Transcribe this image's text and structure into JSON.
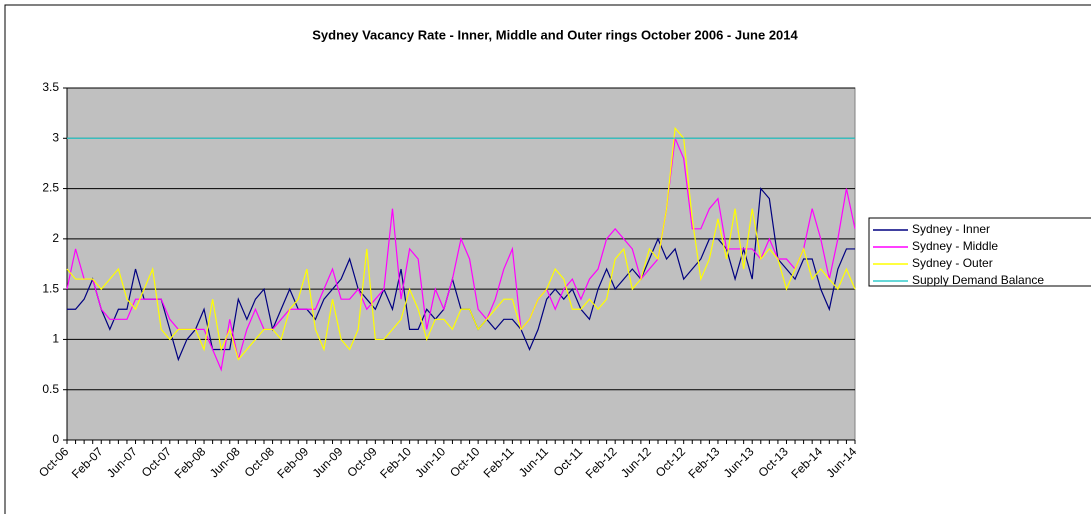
{
  "chart_data": {
    "type": "line",
    "title": "Sydney Vacancy Rate - Inner, Middle and Outer rings October 2006 - June 2014",
    "categories": [
      "Oct-06",
      null,
      null,
      null,
      "Feb-07",
      null,
      null,
      null,
      "Jun-07",
      null,
      null,
      null,
      "Oct-07",
      null,
      null,
      null,
      "Feb-08",
      null,
      null,
      null,
      "Jun-08",
      null,
      null,
      null,
      "Oct-08",
      null,
      null,
      null,
      "Feb-09",
      null,
      null,
      null,
      "Jun-09",
      null,
      null,
      null,
      "Oct-09",
      null,
      null,
      null,
      "Feb-10",
      null,
      null,
      null,
      "Jun-10",
      null,
      null,
      null,
      "Oct-10",
      null,
      null,
      null,
      "Feb-11",
      null,
      null,
      null,
      "Jun-11",
      null,
      null,
      null,
      "Oct-11",
      null,
      null,
      null,
      "Feb-12",
      null,
      null,
      null,
      "Jun-12",
      null,
      null,
      null,
      "Oct-12",
      null,
      null,
      null,
      "Feb-13",
      null,
      null,
      null,
      "Jun-13",
      null,
      null,
      null,
      "Oct-13",
      null,
      null,
      null,
      "Feb-14",
      null,
      null,
      null,
      "Jun-14"
    ],
    "series": [
      {
        "name": "Sydney - Inner",
        "color": "#000080",
        "values": [
          1.3,
          1.3,
          1.4,
          1.6,
          1.3,
          1.1,
          1.3,
          1.3,
          1.7,
          1.4,
          1.4,
          1.4,
          1.1,
          0.8,
          1.0,
          1.1,
          1.3,
          0.9,
          0.9,
          0.9,
          1.4,
          1.2,
          1.4,
          1.5,
          1.1,
          1.3,
          1.5,
          1.3,
          1.3,
          1.2,
          1.4,
          1.5,
          1.6,
          1.8,
          1.5,
          1.4,
          1.3,
          1.5,
          1.3,
          1.7,
          1.1,
          1.1,
          1.3,
          1.2,
          1.3,
          1.6,
          1.3,
          1.3,
          1.1,
          1.2,
          1.1,
          1.2,
          1.2,
          1.1,
          0.9,
          1.1,
          1.4,
          1.5,
          1.4,
          1.5,
          1.3,
          1.2,
          1.5,
          1.7,
          1.5,
          1.6,
          1.7,
          1.6,
          1.8,
          2.0,
          1.8,
          1.9,
          1.6,
          1.7,
          1.8,
          2.0,
          2.0,
          1.9,
          1.6,
          1.9,
          1.6,
          2.5,
          2.4,
          1.8,
          1.7,
          1.6,
          1.8,
          1.8,
          1.5,
          1.3,
          1.7,
          1.9,
          1.9
        ]
      },
      {
        "name": "Sydney - Middle",
        "color": "#ff00ff",
        "values": [
          1.5,
          1.9,
          1.6,
          1.6,
          1.3,
          1.2,
          1.2,
          1.2,
          1.4,
          1.4,
          1.4,
          1.4,
          1.2,
          1.1,
          1.1,
          1.1,
          1.1,
          0.9,
          0.7,
          1.2,
          0.8,
          1.1,
          1.3,
          1.1,
          1.1,
          1.2,
          1.3,
          1.3,
          1.3,
          1.3,
          1.5,
          1.7,
          1.4,
          1.4,
          1.5,
          1.3,
          1.4,
          1.5,
          2.3,
          1.4,
          1.9,
          1.8,
          1.1,
          1.5,
          1.3,
          1.6,
          2.0,
          1.8,
          1.3,
          1.2,
          1.4,
          1.7,
          1.9,
          1.1,
          1.2,
          1.4,
          1.5,
          1.3,
          1.5,
          1.6,
          1.4,
          1.6,
          1.7,
          2.0,
          2.1,
          2.0,
          1.9,
          1.6,
          1.7,
          1.8,
          2.3,
          3.0,
          2.8,
          2.1,
          2.1,
          2.3,
          2.4,
          1.9,
          1.9,
          1.9,
          1.9,
          1.8,
          2.0,
          1.8,
          1.8,
          1.7,
          1.9,
          2.3,
          2.0,
          1.6,
          2.0,
          2.5,
          2.1
        ]
      },
      {
        "name": "Sydney - Outer",
        "color": "#ffff00",
        "values": [
          1.7,
          1.6,
          1.6,
          1.6,
          1.5,
          1.6,
          1.7,
          1.4,
          1.3,
          1.5,
          1.7,
          1.1,
          1.0,
          1.1,
          1.1,
          1.1,
          0.9,
          1.4,
          0.9,
          1.1,
          0.8,
          0.9,
          1.0,
          1.1,
          1.1,
          1.0,
          1.3,
          1.4,
          1.7,
          1.1,
          0.9,
          1.4,
          1.0,
          0.9,
          1.1,
          1.9,
          1.0,
          1.0,
          1.1,
          1.2,
          1.5,
          1.3,
          1.0,
          1.2,
          1.2,
          1.1,
          1.3,
          1.3,
          1.1,
          1.2,
          1.3,
          1.4,
          1.4,
          1.1,
          1.2,
          1.4,
          1.5,
          1.7,
          1.6,
          1.3,
          1.3,
          1.4,
          1.3,
          1.4,
          1.8,
          1.9,
          1.5,
          1.6,
          1.9,
          1.8,
          2.3,
          3.1,
          3.0,
          2.2,
          1.6,
          1.8,
          2.2,
          1.8,
          2.3,
          1.7,
          2.3,
          1.8,
          1.9,
          1.8,
          1.5,
          1.7,
          1.9,
          1.6,
          1.7,
          1.6,
          1.5,
          1.7,
          1.5
        ]
      },
      {
        "name": "Supply Demand Balance",
        "color": "#33cccc",
        "values": [
          3,
          3,
          3,
          3,
          3,
          3,
          3,
          3,
          3,
          3,
          3,
          3,
          3,
          3,
          3,
          3,
          3,
          3,
          3,
          3,
          3,
          3,
          3,
          3,
          3,
          3,
          3,
          3,
          3,
          3,
          3,
          3,
          3,
          3,
          3,
          3,
          3,
          3,
          3,
          3,
          3,
          3,
          3,
          3,
          3,
          3,
          3,
          3,
          3,
          3,
          3,
          3,
          3,
          3,
          3,
          3,
          3,
          3,
          3,
          3,
          3,
          3,
          3,
          3,
          3,
          3,
          3,
          3,
          3,
          3,
          3,
          3,
          3,
          3,
          3,
          3,
          3,
          3,
          3,
          3,
          3,
          3,
          3,
          3,
          3,
          3,
          3,
          3,
          3,
          3,
          3,
          3,
          3
        ]
      }
    ],
    "ylim": [
      0,
      3.5
    ],
    "yticks": [
      0,
      0.5,
      1,
      1.5,
      2,
      2.5,
      3,
      3.5
    ],
    "grid": true,
    "legend": "right"
  }
}
